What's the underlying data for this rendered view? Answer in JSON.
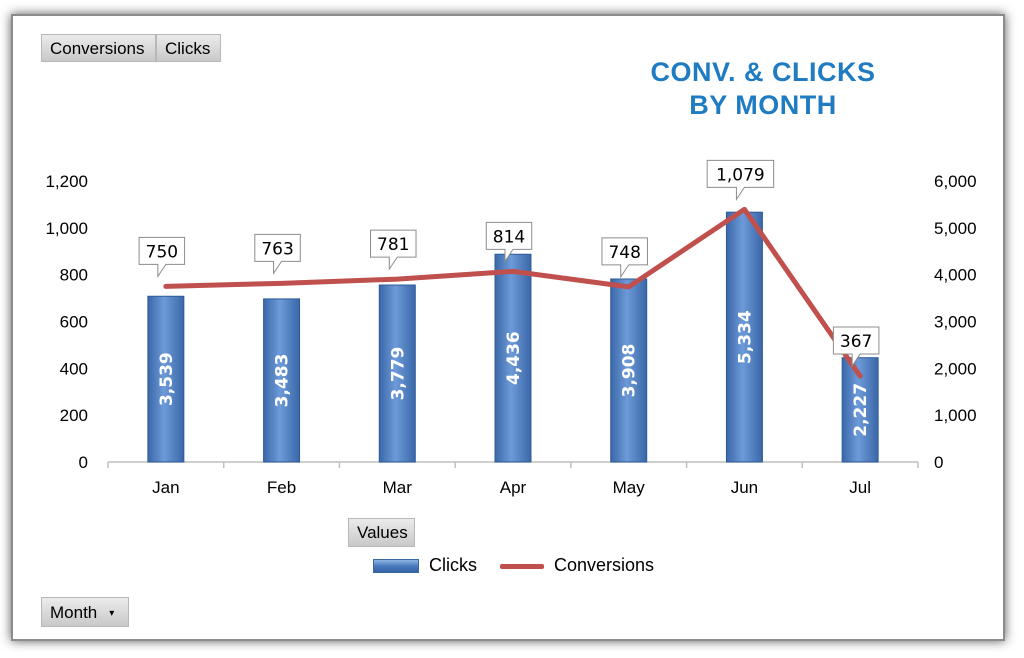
{
  "buttons": {
    "conversions": "Conversions",
    "clicks": "Clicks",
    "values": "Values",
    "month": "Month"
  },
  "title_lines": [
    "CONV. & CLICKS",
    "BY MONTH"
  ],
  "colors": {
    "title": "#1f7bc2",
    "bar": "#4a7cc0",
    "line": "#c0504d"
  },
  "legend": {
    "clicks": "Clicks",
    "conversions": "Conversions"
  },
  "chart_data": {
    "type": "bar",
    "title": "CONV. & CLICKS BY MONTH",
    "categories": [
      "Jan",
      "Feb",
      "Mar",
      "Apr",
      "May",
      "Jun",
      "Jul"
    ],
    "series": [
      {
        "name": "Clicks",
        "type": "bar",
        "axis": "right",
        "values": [
          3539,
          3483,
          3779,
          4436,
          3908,
          5334,
          2227
        ],
        "labels": [
          "3,539",
          "3,483",
          "3,779",
          "4,436",
          "3,908",
          "5,334",
          "2,227"
        ]
      },
      {
        "name": "Conversions",
        "type": "line",
        "axis": "left",
        "values": [
          750,
          763,
          781,
          814,
          748,
          1079,
          367
        ],
        "labels": [
          "750",
          "763",
          "781",
          "814",
          "748",
          "1,079",
          "367"
        ]
      }
    ],
    "y_left": {
      "ylim": [
        0,
        1200
      ],
      "ticks": [
        0,
        200,
        400,
        600,
        800,
        1000,
        1200
      ],
      "tick_labels": [
        "0",
        "200",
        "400",
        "600",
        "800",
        "1,000",
        "1,200"
      ]
    },
    "y_right": {
      "ylim": [
        0,
        6000
      ],
      "ticks": [
        0,
        1000,
        2000,
        3000,
        4000,
        5000,
        6000
      ],
      "tick_labels": [
        "0",
        "1,000",
        "2,000",
        "3,000",
        "4,000",
        "5,000",
        "6,000"
      ]
    },
    "grid": false,
    "legend_position": "bottom"
  }
}
